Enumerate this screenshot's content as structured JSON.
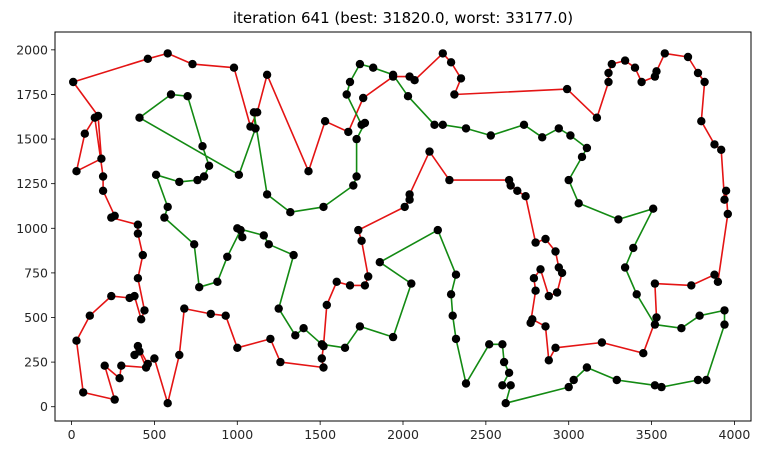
{
  "chart_data": {
    "type": "line",
    "title": "iteration 641 (best: 31820.0, worst: 33177.0)",
    "xlabel": "",
    "ylabel": "",
    "xlim": [
      -100,
      4100
    ],
    "ylim": [
      -80,
      2100
    ],
    "xticks": [
      0,
      500,
      1000,
      1500,
      2000,
      2500,
      3000,
      3500,
      4000
    ],
    "yticks": [
      0,
      250,
      500,
      750,
      1000,
      1250,
      1500,
      1750,
      2000
    ],
    "xtick_labels": [
      "0",
      "500",
      "1000",
      "1500",
      "2000",
      "2500",
      "3000",
      "3500",
      "4000"
    ],
    "ytick_labels": [
      "0",
      "250",
      "500",
      "750",
      "1000",
      "1250",
      "1500",
      "1750",
      "2000"
    ],
    "grid": false,
    "colors": {
      "red": "#e41414",
      "green": "#138a13",
      "point": "#000000"
    },
    "series": [
      {
        "color": "red",
        "points": [
          [
            2740,
            1180
          ],
          [
            2800,
            920
          ],
          [
            2860,
            940
          ],
          [
            2920,
            870
          ],
          [
            2940,
            780
          ],
          [
            2960,
            750
          ],
          [
            2930,
            640
          ],
          [
            2880,
            620
          ],
          [
            2830,
            770
          ],
          [
            2790,
            720
          ],
          [
            2800,
            650
          ],
          [
            2770,
            470
          ],
          [
            2780,
            490
          ],
          [
            2860,
            450
          ],
          [
            2880,
            260
          ],
          [
            2920,
            330
          ],
          [
            3200,
            360
          ],
          [
            3450,
            300
          ],
          [
            3530,
            500
          ],
          [
            3520,
            690
          ],
          [
            3740,
            680
          ],
          [
            3880,
            740
          ],
          [
            3900,
            700
          ],
          [
            3960,
            1080
          ],
          [
            3950,
            1210
          ],
          [
            3940,
            1160
          ],
          [
            3920,
            1440
          ],
          [
            3880,
            1470
          ],
          [
            3800,
            1600
          ],
          [
            3820,
            1820
          ],
          [
            3780,
            1870
          ],
          [
            3720,
            1960
          ],
          [
            3580,
            1980
          ],
          [
            3530,
            1880
          ],
          [
            3520,
            1850
          ],
          [
            3440,
            1820
          ],
          [
            3400,
            1900
          ],
          [
            3340,
            1940
          ],
          [
            3260,
            1920
          ],
          [
            3240,
            1870
          ],
          [
            3240,
            1820
          ],
          [
            3170,
            1620
          ],
          [
            2990,
            1780
          ],
          [
            2310,
            1750
          ],
          [
            2350,
            1840
          ],
          [
            2290,
            1930
          ],
          [
            2240,
            1980
          ],
          [
            2070,
            1830
          ],
          [
            2040,
            1850
          ],
          [
            1940,
            1850
          ],
          [
            1760,
            1730
          ],
          [
            1670,
            1540
          ],
          [
            1530,
            1600
          ],
          [
            1430,
            1320
          ],
          [
            1180,
            1860
          ],
          [
            1120,
            1650
          ],
          [
            1080,
            1570
          ],
          [
            980,
            1900
          ],
          [
            730,
            1920
          ],
          [
            580,
            1980
          ],
          [
            460,
            1950
          ],
          [
            10,
            1820
          ],
          [
            160,
            1630
          ],
          [
            180,
            1390
          ],
          [
            30,
            1320
          ],
          [
            80,
            1530
          ],
          [
            140,
            1620
          ],
          [
            190,
            1290
          ],
          [
            190,
            1210
          ],
          [
            260,
            1070
          ],
          [
            240,
            1060
          ],
          [
            400,
            1020
          ],
          [
            400,
            970
          ],
          [
            430,
            850
          ],
          [
            400,
            720
          ],
          [
            440,
            540
          ],
          [
            420,
            490
          ],
          [
            380,
            620
          ],
          [
            350,
            610
          ],
          [
            240,
            620
          ],
          [
            110,
            510
          ],
          [
            30,
            370
          ],
          [
            70,
            80
          ],
          [
            260,
            40
          ],
          [
            200,
            230
          ],
          [
            290,
            160
          ],
          [
            300,
            230
          ],
          [
            450,
            220
          ],
          [
            410,
            310
          ],
          [
            380,
            290
          ],
          [
            400,
            340
          ],
          [
            460,
            240
          ],
          [
            500,
            270
          ],
          [
            580,
            20
          ],
          [
            650,
            290
          ],
          [
            680,
            550
          ],
          [
            840,
            520
          ],
          [
            930,
            510
          ],
          [
            1000,
            330
          ],
          [
            1200,
            380
          ],
          [
            1260,
            250
          ],
          [
            1520,
            220
          ],
          [
            1510,
            270
          ],
          [
            1520,
            340
          ],
          [
            1540,
            570
          ],
          [
            1600,
            700
          ],
          [
            1680,
            680
          ],
          [
            1770,
            680
          ],
          [
            1790,
            730
          ],
          [
            1750,
            930
          ],
          [
            1730,
            990
          ],
          [
            2010,
            1120
          ],
          [
            2040,
            1160
          ],
          [
            2040,
            1190
          ],
          [
            2160,
            1430
          ],
          [
            2280,
            1270
          ],
          [
            2640,
            1270
          ],
          [
            2650,
            1240
          ],
          [
            2690,
            1210
          ],
          [
            2740,
            1180
          ]
        ]
      },
      {
        "color": "green",
        "points": [
          [
            410,
            1620
          ],
          [
            600,
            1750
          ],
          [
            700,
            1740
          ],
          [
            790,
            1460
          ],
          [
            830,
            1350
          ],
          [
            800,
            1290
          ],
          [
            760,
            1270
          ],
          [
            650,
            1260
          ],
          [
            510,
            1300
          ],
          [
            580,
            1120
          ],
          [
            560,
            1060
          ],
          [
            740,
            910
          ],
          [
            770,
            670
          ],
          [
            880,
            700
          ],
          [
            940,
            840
          ],
          [
            1020,
            990
          ],
          [
            1030,
            950
          ],
          [
            1000,
            1000
          ],
          [
            1160,
            960
          ],
          [
            1190,
            910
          ],
          [
            1340,
            850
          ],
          [
            1250,
            550
          ],
          [
            1350,
            400
          ],
          [
            1400,
            440
          ],
          [
            1510,
            350
          ],
          [
            1650,
            330
          ],
          [
            1740,
            450
          ],
          [
            1940,
            390
          ],
          [
            2050,
            690
          ],
          [
            1860,
            810
          ],
          [
            2210,
            990
          ],
          [
            2320,
            740
          ],
          [
            2290,
            630
          ],
          [
            2300,
            510
          ],
          [
            2320,
            380
          ],
          [
            2380,
            130
          ],
          [
            2520,
            350
          ],
          [
            2600,
            350
          ],
          [
            2610,
            250
          ],
          [
            2640,
            190
          ],
          [
            2600,
            120
          ],
          [
            2650,
            120
          ],
          [
            2620,
            20
          ],
          [
            3000,
            110
          ],
          [
            3030,
            150
          ],
          [
            3110,
            220
          ],
          [
            3290,
            150
          ],
          [
            3520,
            120
          ],
          [
            3560,
            110
          ],
          [
            3780,
            150
          ],
          [
            3830,
            150
          ],
          [
            3940,
            460
          ],
          [
            3940,
            540
          ],
          [
            3790,
            510
          ],
          [
            3680,
            440
          ],
          [
            3520,
            460
          ],
          [
            3410,
            630
          ],
          [
            3340,
            780
          ],
          [
            3390,
            890
          ],
          [
            3510,
            1110
          ],
          [
            3300,
            1050
          ],
          [
            3060,
            1140
          ],
          [
            3000,
            1270
          ],
          [
            3080,
            1400
          ],
          [
            3110,
            1450
          ],
          [
            3010,
            1520
          ],
          [
            2940,
            1560
          ],
          [
            2840,
            1510
          ],
          [
            2730,
            1580
          ],
          [
            2530,
            1520
          ],
          [
            2380,
            1560
          ],
          [
            2240,
            1580
          ],
          [
            2190,
            1580
          ],
          [
            2030,
            1740
          ],
          [
            1940,
            1860
          ],
          [
            1820,
            1900
          ],
          [
            1740,
            1920
          ],
          [
            1680,
            1820
          ],
          [
            1660,
            1750
          ],
          [
            1750,
            1580
          ],
          [
            1770,
            1590
          ],
          [
            1720,
            1500
          ],
          [
            1720,
            1290
          ],
          [
            1700,
            1240
          ],
          [
            1520,
            1120
          ],
          [
            1320,
            1090
          ],
          [
            1180,
            1190
          ],
          [
            1100,
            1650
          ],
          [
            1110,
            1560
          ],
          [
            1010,
            1300
          ],
          [
            410,
            1620
          ]
        ]
      }
    ]
  }
}
